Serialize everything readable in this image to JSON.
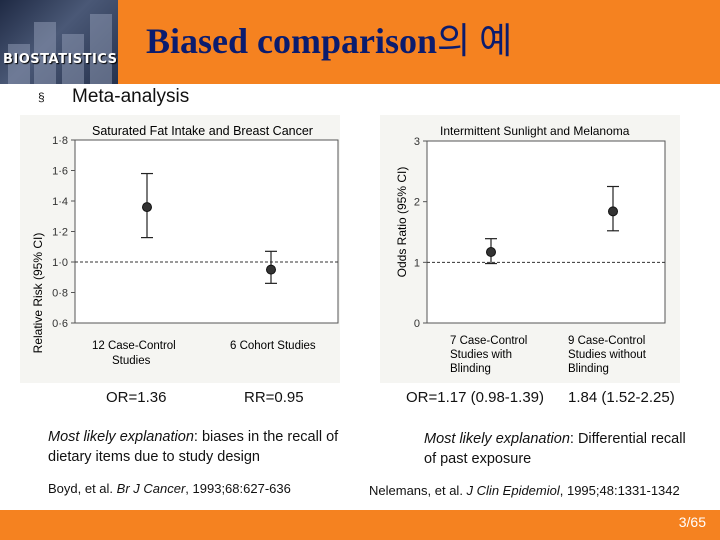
{
  "header": {
    "logo_text": "BIOSTATISTICS",
    "title": "Biased comparison",
    "title_suffix": "의 예"
  },
  "bullet": {
    "symbol": "§",
    "text": "Meta-analysis"
  },
  "figure_left": {
    "title": "Saturated Fat Intake and Breast Cancer",
    "ylabel": "Relative Risk (95% CI)",
    "yticks": [
      "0·6",
      "0·8",
      "1·0",
      "1·2",
      "1·4",
      "1·6",
      "1·8"
    ],
    "xcat1": [
      "12 Case-Control",
      "Studies"
    ],
    "xcat2": [
      "6 Cohort Studies"
    ]
  },
  "figure_right": {
    "title": "Intermittent Sunlight and Melanoma",
    "ylabel": "Odds Ratio (95% CI)",
    "yticks": [
      "0",
      "1",
      "2",
      "3"
    ],
    "xcat1": [
      "7 Case-Control",
      "Studies with",
      "Blinding"
    ],
    "xcat2": [
      "9 Case-Control",
      "Studies without",
      "Blinding"
    ]
  },
  "chart_data": [
    {
      "type": "scatter",
      "title": "Saturated Fat Intake and Breast Cancer",
      "ylabel": "Relative Risk (95% CI)",
      "ylim": [
        0.6,
        1.8
      ],
      "reference_line": 1.0,
      "categories": [
        "12 Case-Control Studies",
        "6 Cohort Studies"
      ],
      "values": [
        1.36,
        0.95
      ],
      "ci_lower": [
        1.16,
        0.86
      ],
      "ci_upper": [
        1.58,
        1.07
      ]
    },
    {
      "type": "scatter",
      "title": "Intermittent Sunlight and Melanoma",
      "ylabel": "Odds Ratio (95% CI)",
      "ylim": [
        0,
        3
      ],
      "reference_line": 1.0,
      "categories": [
        "7 Case-Control Studies with Blinding",
        "9 Case-Control Studies without Blinding"
      ],
      "values": [
        1.17,
        1.84
      ],
      "ci_lower": [
        0.98,
        1.52
      ],
      "ci_upper": [
        1.39,
        2.25
      ]
    }
  ],
  "results": {
    "or_left": "OR=1.36",
    "rr_left": "RR=0.95",
    "or_right": "OR=1.17 (0.98-1.39)",
    "ci_right": "1.84 (1.52-2.25)"
  },
  "explanations": {
    "left_label": "Most likely explanation",
    "left_text": ": biases in the recall of dietary items due to study design",
    "right_label": "Most likely explanation",
    "right_text": ": Differential recall of past exposure"
  },
  "references": {
    "left_pre": "Boyd, et al. ",
    "left_journal": "Br J Cancer",
    "left_post": ", 1993;68:627-636",
    "right_pre": "Nelemans, et al. ",
    "right_journal": "J Clin Epidemiol",
    "right_post": ", 1995;48:1331-1342"
  },
  "footer": {
    "page": "3/65"
  }
}
